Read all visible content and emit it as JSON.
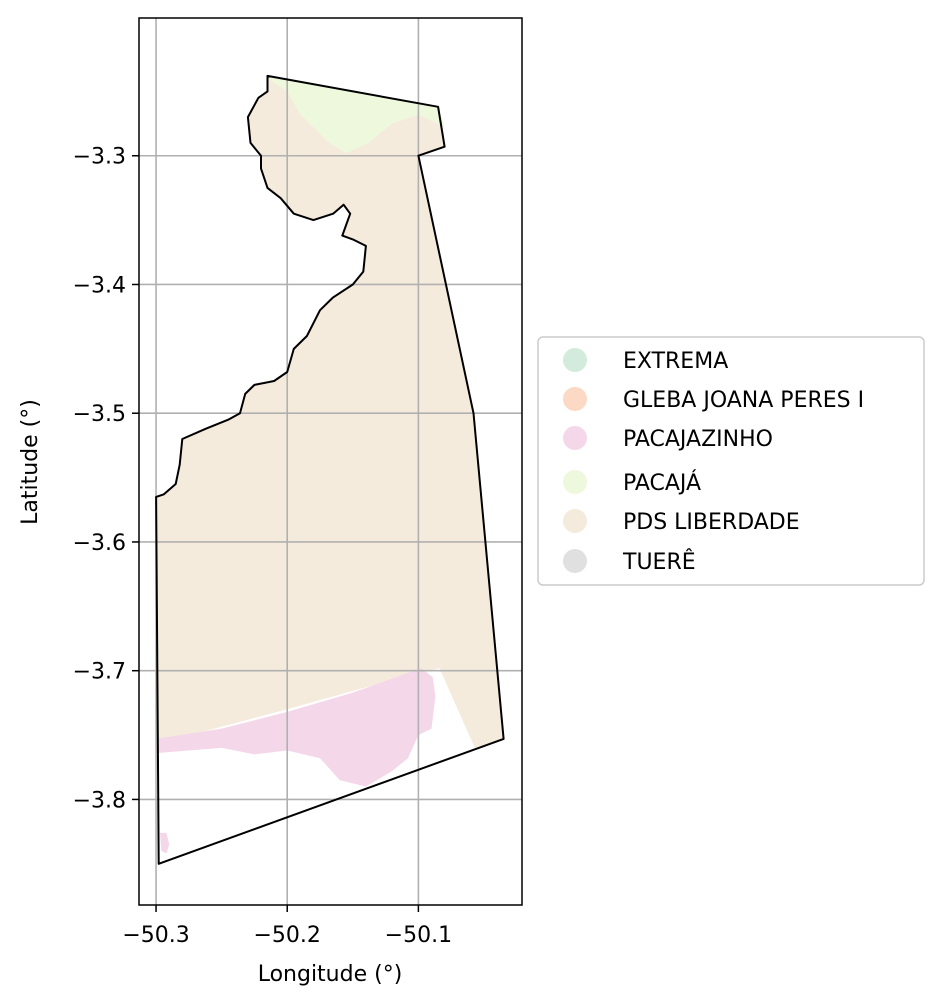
{
  "map": {
    "xlabel": "Longitude (°)",
    "ylabel": "Latitude (°)",
    "xlim": [
      -50.313,
      -50.021
    ],
    "ylim": [
      -3.882,
      -3.193
    ],
    "grid": true,
    "x_ticks": [
      {
        "value": -50.3,
        "label": "−50.3"
      },
      {
        "value": -50.2,
        "label": "−50.2"
      },
      {
        "value": -50.1,
        "label": "−50.1"
      }
    ],
    "y_ticks": [
      {
        "value": -3.3,
        "label": "−3.3"
      },
      {
        "value": -3.4,
        "label": "−3.4"
      },
      {
        "value": -3.5,
        "label": "−3.5"
      },
      {
        "value": -3.6,
        "label": "−3.6"
      },
      {
        "value": -3.7,
        "label": "−3.7"
      },
      {
        "value": -3.8,
        "label": "−3.8"
      }
    ],
    "legend_position": "outside-right",
    "legend": [
      {
        "label": "EXTREMA",
        "color": "#d3ebdd"
      },
      {
        "label": "GLEBA JOANA PERES I",
        "color": "#fbd9c4"
      },
      {
        "label": "PACAJAZINHO",
        "color": "#f4d8ea"
      },
      {
        "label": "PACAJÁ",
        "color": "#eef8dc"
      },
      {
        "label": "PDS LIBERDADE",
        "color": "#f5ebdd"
      },
      {
        "label": "TUERÊ",
        "color": "#e0e0e0"
      }
    ],
    "regions": [
      {
        "name": "PDS LIBERDADE",
        "color": "#f5ebdd",
        "polygon": [
          [
            -50.215,
            -3.238
          ],
          [
            -50.085,
            -3.262
          ],
          [
            -50.08,
            -3.293
          ],
          [
            -50.1,
            -3.3
          ],
          [
            -50.058,
            -3.5
          ],
          [
            -50.035,
            -3.753
          ],
          [
            -50.057,
            -3.76
          ],
          [
            -50.084,
            -3.698
          ],
          [
            -50.13,
            -3.71
          ],
          [
            -50.2,
            -3.73
          ],
          [
            -50.3,
            -3.757
          ],
          [
            -50.3,
            -3.565
          ],
          [
            -50.294,
            -3.563
          ],
          [
            -50.285,
            -3.555
          ],
          [
            -50.282,
            -3.54
          ],
          [
            -50.28,
            -3.52
          ],
          [
            -50.262,
            -3.512
          ],
          [
            -50.245,
            -3.505
          ],
          [
            -50.236,
            -3.5
          ],
          [
            -50.232,
            -3.485
          ],
          [
            -50.225,
            -3.478
          ],
          [
            -50.21,
            -3.475
          ],
          [
            -50.2,
            -3.468
          ],
          [
            -50.195,
            -3.45
          ],
          [
            -50.185,
            -3.44
          ],
          [
            -50.175,
            -3.42
          ],
          [
            -50.165,
            -3.41
          ],
          [
            -50.15,
            -3.4
          ],
          [
            -50.142,
            -3.39
          ],
          [
            -50.14,
            -3.37
          ],
          [
            -50.15,
            -3.365
          ],
          [
            -50.158,
            -3.362
          ],
          [
            -50.152,
            -3.345
          ],
          [
            -50.157,
            -3.338
          ],
          [
            -50.165,
            -3.345
          ],
          [
            -50.18,
            -3.35
          ],
          [
            -50.195,
            -3.345
          ],
          [
            -50.205,
            -3.333
          ],
          [
            -50.215,
            -3.325
          ],
          [
            -50.22,
            -3.31
          ],
          [
            -50.22,
            -3.3
          ],
          [
            -50.228,
            -3.29
          ],
          [
            -50.23,
            -3.27
          ],
          [
            -50.222,
            -3.255
          ],
          [
            -50.215,
            -3.25
          ]
        ]
      },
      {
        "name": "PACAJÁ",
        "color": "#eef8dc",
        "polygon": [
          [
            -50.215,
            -3.238
          ],
          [
            -50.085,
            -3.262
          ],
          [
            -50.08,
            -3.278
          ],
          [
            -50.1,
            -3.268
          ],
          [
            -50.12,
            -3.275
          ],
          [
            -50.138,
            -3.29
          ],
          [
            -50.155,
            -3.298
          ],
          [
            -50.168,
            -3.29
          ],
          [
            -50.19,
            -3.268
          ],
          [
            -50.2,
            -3.25
          ],
          [
            -50.212,
            -3.242
          ]
        ]
      },
      {
        "name": "PACAJAZINHO",
        "color": "#f4d8ea",
        "polygon": [
          [
            -50.3,
            -3.753
          ],
          [
            -50.25,
            -3.745
          ],
          [
            -50.2,
            -3.732
          ],
          [
            -50.15,
            -3.717
          ],
          [
            -50.098,
            -3.698
          ],
          [
            -50.089,
            -3.705
          ],
          [
            -50.087,
            -3.72
          ],
          [
            -50.09,
            -3.745
          ],
          [
            -50.1,
            -3.75
          ],
          [
            -50.108,
            -3.768
          ],
          [
            -50.12,
            -3.778
          ],
          [
            -50.14,
            -3.79
          ],
          [
            -50.16,
            -3.785
          ],
          [
            -50.175,
            -3.768
          ],
          [
            -50.2,
            -3.762
          ],
          [
            -50.225,
            -3.765
          ],
          [
            -50.25,
            -3.76
          ],
          [
            -50.275,
            -3.762
          ],
          [
            -50.3,
            -3.764
          ]
        ]
      },
      {
        "name": "PACAJAZINHO",
        "color": "#f4d8ea",
        "polygon": [
          [
            -50.297,
            -3.826
          ],
          [
            -50.292,
            -3.826
          ],
          [
            -50.29,
            -3.835
          ],
          [
            -50.292,
            -3.842
          ],
          [
            -50.296,
            -3.84
          ]
        ]
      }
    ],
    "outline": [
      [
        -50.215,
        -3.238
      ],
      [
        -50.085,
        -3.262
      ],
      [
        -50.08,
        -3.293
      ],
      [
        -50.1,
        -3.3
      ],
      [
        -50.058,
        -3.5
      ],
      [
        -50.035,
        -3.753
      ],
      [
        -50.298,
        -3.85
      ],
      [
        -50.3,
        -3.565
      ],
      [
        -50.294,
        -3.563
      ],
      [
        -50.285,
        -3.555
      ],
      [
        -50.282,
        -3.54
      ],
      [
        -50.28,
        -3.52
      ],
      [
        -50.262,
        -3.512
      ],
      [
        -50.245,
        -3.505
      ],
      [
        -50.236,
        -3.5
      ],
      [
        -50.232,
        -3.485
      ],
      [
        -50.225,
        -3.478
      ],
      [
        -50.21,
        -3.475
      ],
      [
        -50.2,
        -3.468
      ],
      [
        -50.195,
        -3.45
      ],
      [
        -50.185,
        -3.44
      ],
      [
        -50.175,
        -3.42
      ],
      [
        -50.165,
        -3.41
      ],
      [
        -50.15,
        -3.4
      ],
      [
        -50.142,
        -3.39
      ],
      [
        -50.14,
        -3.37
      ],
      [
        -50.15,
        -3.365
      ],
      [
        -50.158,
        -3.362
      ],
      [
        -50.152,
        -3.345
      ],
      [
        -50.157,
        -3.338
      ],
      [
        -50.165,
        -3.345
      ],
      [
        -50.18,
        -3.35
      ],
      [
        -50.195,
        -3.345
      ],
      [
        -50.205,
        -3.333
      ],
      [
        -50.215,
        -3.325
      ],
      [
        -50.22,
        -3.31
      ],
      [
        -50.22,
        -3.3
      ],
      [
        -50.228,
        -3.29
      ],
      [
        -50.23,
        -3.27
      ],
      [
        -50.222,
        -3.255
      ],
      [
        -50.215,
        -3.25
      ]
    ]
  }
}
